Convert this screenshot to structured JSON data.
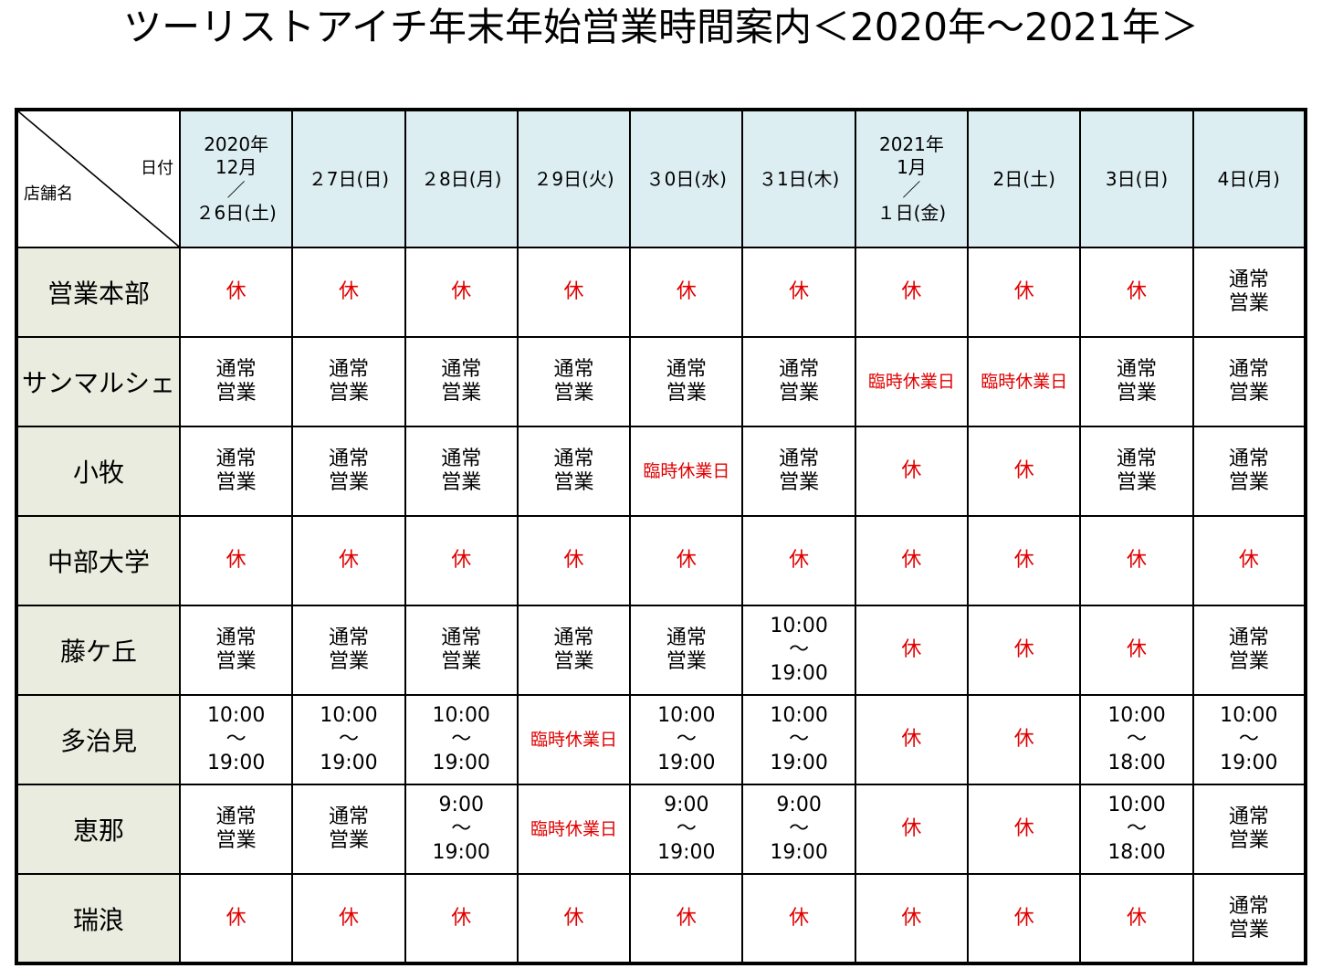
{
  "title": "ツーリストアイチ年末年始営業時間案内＜2020年～2021年＞",
  "corner": {
    "date_label": "日付",
    "store_label": "店舗名"
  },
  "dates": [
    "2020年\n12月\n／\n２6日(土)",
    "２7日(日)",
    "２8日(月)",
    "２9日(火)",
    "３0日(水)",
    "３1日(木)",
    "2021年\n1月\n／\n１日(金)",
    "2日(土)",
    "3日(日)",
    "4日(月)"
  ],
  "rows": [
    {
      "store": "営業本部",
      "cells": [
        "休",
        "休",
        "休",
        "休",
        "休",
        "休",
        "休",
        "休",
        "休",
        "通常\n営業"
      ]
    },
    {
      "store": "サンマルシェ",
      "cells": [
        "通常\n営業",
        "通常\n営業",
        "通常\n営業",
        "通常\n営業",
        "通常\n営業",
        "通常\n営業",
        "臨時休業日",
        "臨時休業日",
        "通常\n営業",
        "通常\n営業"
      ]
    },
    {
      "store": "小牧",
      "cells": [
        "通常\n営業",
        "通常\n営業",
        "通常\n営業",
        "通常\n営業",
        "臨時休業日",
        "通常\n営業",
        "休",
        "休",
        "通常\n営業",
        "通常\n営業"
      ]
    },
    {
      "store": "中部大学",
      "cells": [
        "休",
        "休",
        "休",
        "休",
        "休",
        "休",
        "休",
        "休",
        "休",
        "休"
      ]
    },
    {
      "store": "藤ケ丘",
      "cells": [
        "通常\n営業",
        "通常\n営業",
        "通常\n営業",
        "通常\n営業",
        "通常\n営業",
        "10:00\n～\n19:00",
        "休",
        "休",
        "休",
        "通常\n営業"
      ]
    },
    {
      "store": "多治見",
      "cells": [
        "10:00\n～\n19:00",
        "10:00\n～\n19:00",
        "10:00\n～\n19:00",
        "臨時休業日",
        "10:00\n～\n19:00",
        "10:00\n～\n19:00",
        "休",
        "休",
        "10:00\n～\n18:00",
        "10:00\n～\n19:00"
      ]
    },
    {
      "store": "恵那",
      "cells": [
        "通常\n営業",
        "通常\n営業",
        "9:00\n～\n19:00",
        "臨時休業日",
        "9:00\n～\n19:00",
        "9:00\n～\n19:00",
        "休",
        "休",
        "10:00\n～\n18:00",
        "通常\n営業"
      ]
    },
    {
      "store": "瑞浪",
      "cells": [
        "休",
        "休",
        "休",
        "休",
        "休",
        "休",
        "休",
        "休",
        "休",
        "通常\n営業"
      ]
    }
  ],
  "colors": {
    "closed_text": "#e00000",
    "header_bg": "#ddeef3",
    "store_bg": "#eaecdf"
  }
}
